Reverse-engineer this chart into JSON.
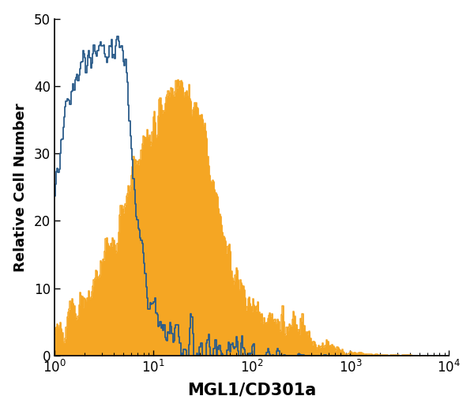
{
  "title": "",
  "xlabel": "MGL1/CD301a",
  "ylabel": "Relative Cell Number",
  "xlim_log": [
    1,
    10000
  ],
  "ylim": [
    0,
    50
  ],
  "yticks": [
    0,
    10,
    20,
    30,
    40,
    50
  ],
  "background_color": "#ffffff",
  "blue_color": "#2B5C8A",
  "orange_color": "#F5A623",
  "xlabel_fontsize": 15,
  "ylabel_fontsize": 13,
  "tick_fontsize": 12,
  "blue_linewidth": 1.3,
  "orange_linewidth": 1.1
}
